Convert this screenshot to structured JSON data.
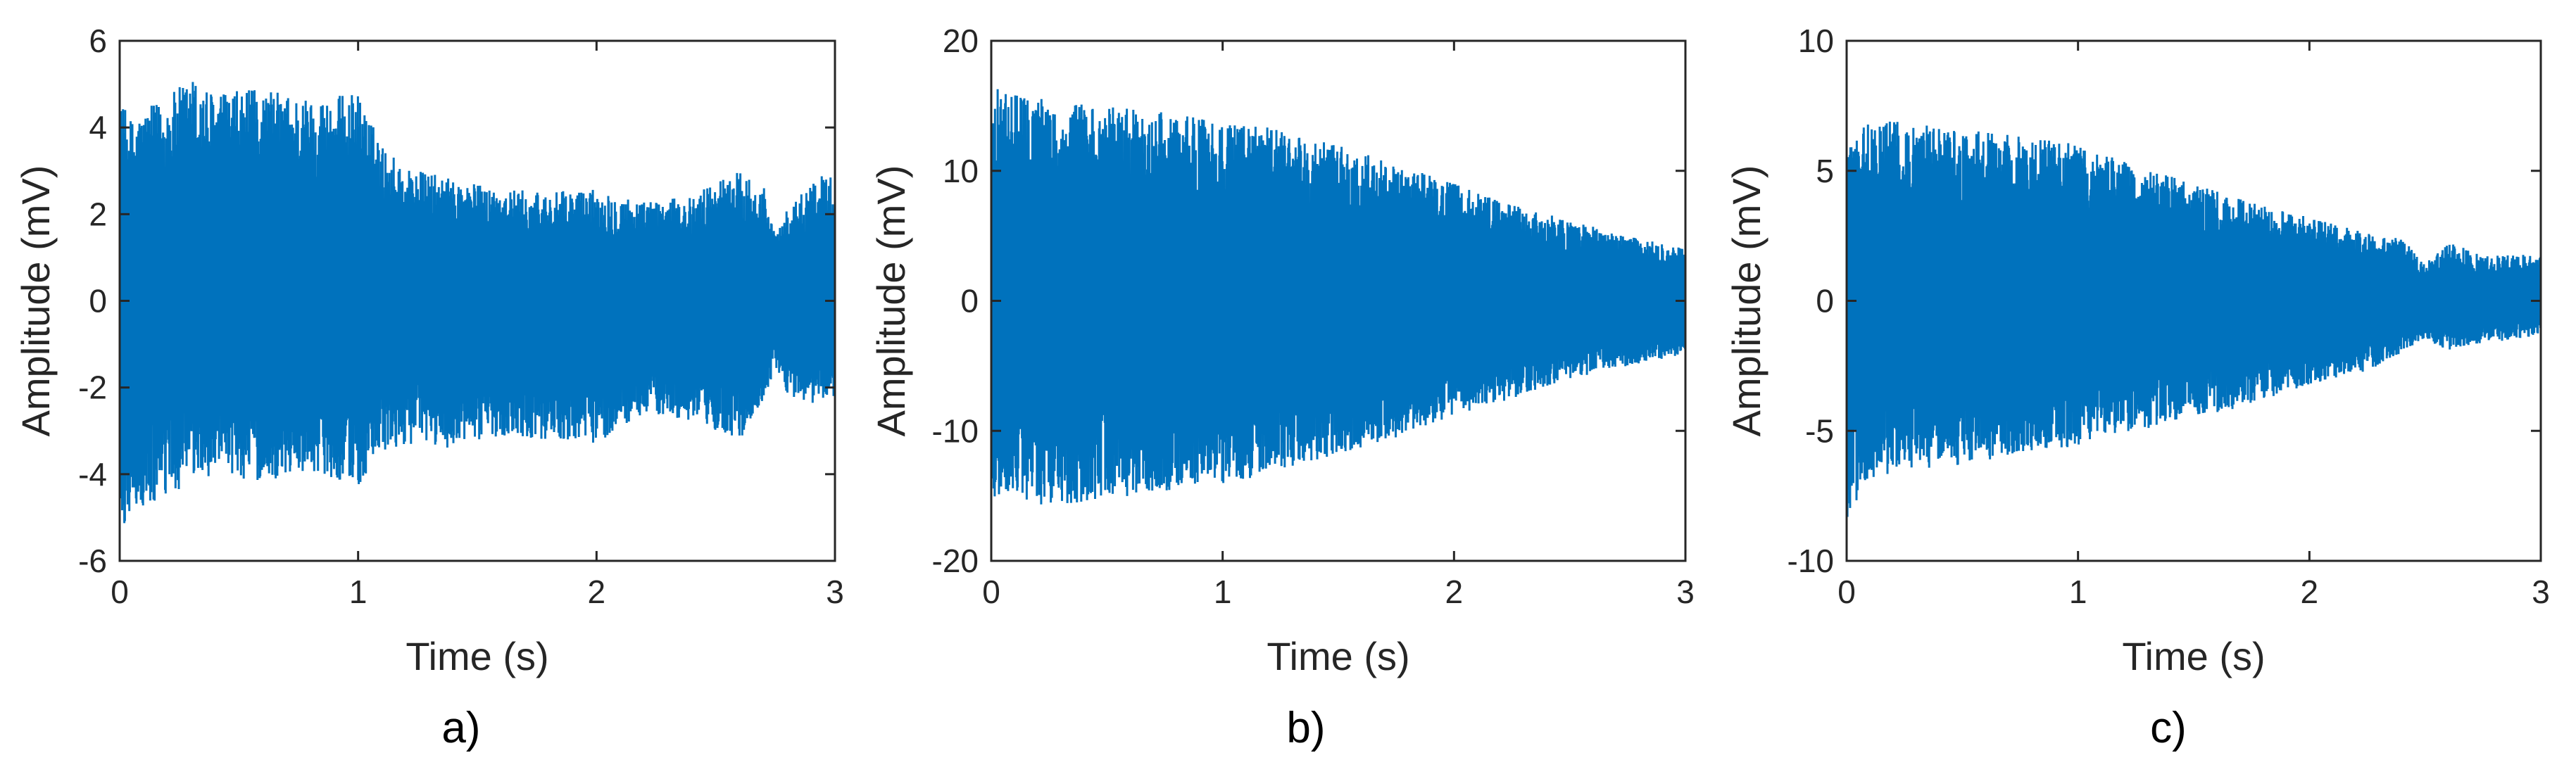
{
  "chart_data": [
    {
      "type": "line",
      "panel_label": "a)",
      "xlabel": "Time (s)",
      "ylabel": "Amplitude (mV)",
      "xlim": [
        0,
        3
      ],
      "ylim": [
        -6,
        6
      ],
      "xticks": [
        0,
        1,
        2,
        3
      ],
      "yticks": [
        -6,
        -4,
        -2,
        0,
        2,
        4,
        6
      ],
      "grid": false,
      "legend": "none",
      "series": [
        {
          "color": "#0072BD",
          "envelope": {
            "t": [
              0,
              0.05,
              0.1,
              0.2,
              0.3,
              0.4,
              0.6,
              0.8,
              1.0,
              1.1,
              1.2,
              1.4,
              1.6,
              1.8,
              2.0,
              2.2,
              2.4,
              2.5,
              2.6,
              2.7,
              2.75,
              2.8,
              2.9,
              3.0
            ],
            "upper": [
              4.6,
              4.2,
              4.4,
              4.7,
              5.2,
              4.8,
              4.9,
              4.7,
              4.8,
              3.6,
              3.1,
              2.8,
              2.6,
              2.5,
              2.6,
              2.3,
              2.4,
              2.8,
              3.0,
              2.7,
              1.5,
              2.1,
              2.8,
              3.0
            ],
            "lower": [
              -5.5,
              -4.8,
              -4.9,
              -4.6,
              -4.2,
              -4.0,
              -4.2,
              -3.9,
              -4.3,
              -3.6,
              -3.3,
              -3.4,
              -3.1,
              -3.2,
              -3.3,
              -2.6,
              -2.8,
              -3.0,
              -3.2,
              -2.4,
              -1.5,
              -2.2,
              -2.4,
              -2.2
            ]
          }
        }
      ]
    },
    {
      "type": "line",
      "panel_label": "b)",
      "xlabel": "Time (s)",
      "ylabel": "Amplitude (mV)",
      "xlim": [
        0,
        3
      ],
      "ylim": [
        -20,
        20
      ],
      "xticks": [
        0,
        1,
        2,
        3
      ],
      "yticks": [
        -20,
        -10,
        0,
        10,
        20
      ],
      "grid": false,
      "legend": "none",
      "series": [
        {
          "color": "#0072BD",
          "envelope": {
            "t": [
              0,
              0.25,
              0.5,
              0.75,
              1.0,
              1.25,
              1.5,
              1.75,
              2.0,
              2.25,
              2.5,
              2.75,
              3.0
            ],
            "upper": [
              16.5,
              15.5,
              15.0,
              14.5,
              14.0,
              13.2,
              12.0,
              10.5,
              9.0,
              7.5,
              6.2,
              5.0,
              4.0
            ],
            "lower": [
              -15.0,
              -15.8,
              -15.2,
              -14.8,
              -14.2,
              -13.0,
              -11.8,
              -10.5,
              -9.0,
              -7.5,
              -6.0,
              -5.0,
              -4.2
            ]
          }
        }
      ]
    },
    {
      "type": "line",
      "panel_label": "c)",
      "xlabel": "Time (s)",
      "ylabel": "Amplitude (mV)",
      "xlim": [
        0,
        3
      ],
      "ylim": [
        -10,
        10
      ],
      "xticks": [
        0,
        1,
        2,
        3
      ],
      "yticks": [
        -10,
        -5,
        0,
        5,
        10
      ],
      "grid": false,
      "legend": "none",
      "series": [
        {
          "color": "#0072BD",
          "envelope": {
            "t": [
              0,
              0.1,
              0.3,
              0.5,
              0.7,
              1.0,
              1.25,
              1.5,
              1.75,
              2.0,
              2.25,
              2.4,
              2.5,
              2.6,
              2.75,
              2.9,
              3.0
            ],
            "upper": [
              6.2,
              7.0,
              6.8,
              6.6,
              6.5,
              6.0,
              5.2,
              4.5,
              3.8,
              3.2,
              2.6,
              2.4,
              1.4,
              2.3,
              1.7,
              1.8,
              1.7
            ],
            "lower": [
              -8.5,
              -6.8,
              -6.5,
              -6.3,
              -6.0,
              -5.6,
              -5.0,
              -4.5,
              -4.0,
              -3.2,
              -2.7,
              -2.0,
              -1.5,
              -1.9,
              -1.6,
              -1.5,
              -1.3
            ]
          }
        }
      ]
    }
  ]
}
